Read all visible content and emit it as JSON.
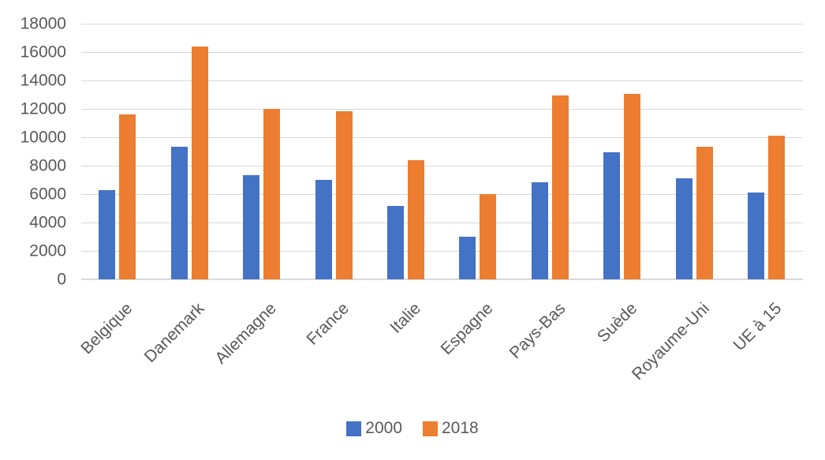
{
  "chart_data": {
    "type": "bar",
    "categories": [
      "Belgique",
      "Danemark",
      "Allemagne",
      "France",
      "Italie",
      "Espagne",
      "Pays-Bas",
      "Suède",
      "Royaume-Uni",
      "UE à 15"
    ],
    "series": [
      {
        "name": "2000",
        "color": "#4472C4",
        "values": [
          6250,
          9350,
          7350,
          7000,
          5150,
          3000,
          6850,
          8950,
          7100,
          6100
        ]
      },
      {
        "name": "2018",
        "color": "#ED7D31",
        "values": [
          11600,
          16400,
          12000,
          11850,
          8400,
          6000,
          12950,
          13050,
          9350,
          10100
        ]
      }
    ],
    "title": "",
    "xlabel": "",
    "ylabel": "",
    "ylim": [
      0,
      18000
    ],
    "ytick_step": 2000,
    "ytick_labels": [
      "0",
      "2000",
      "4000",
      "6000",
      "8000",
      "10000",
      "12000",
      "14000",
      "16000",
      "18000"
    ],
    "grid": true,
    "legend_position": "bottom",
    "axis_text_color": "#595959",
    "gridline_color": "#D9D9D9",
    "background_color": "#FFFFFF"
  }
}
